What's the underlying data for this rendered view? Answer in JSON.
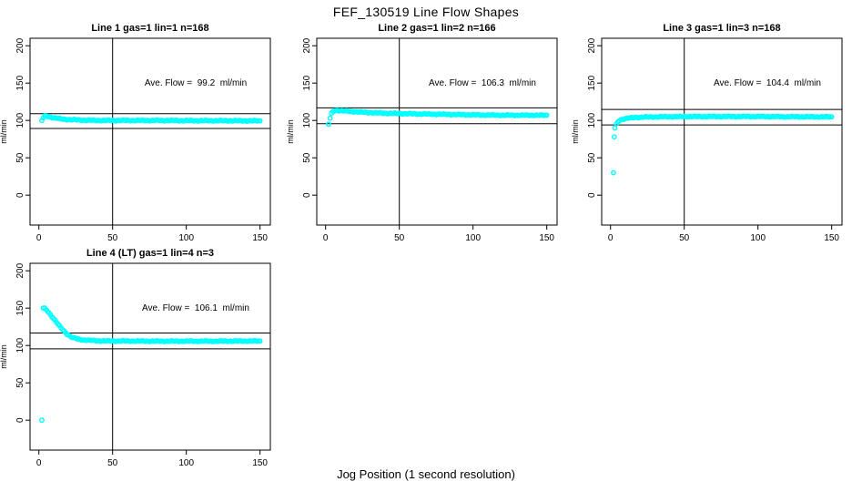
{
  "page": {
    "title": "FEF_130519  Line Flow Shapes",
    "xlabel": "Jog Position (1 second resolution)",
    "background_color": "#ffffff",
    "axis_color": "#000000",
    "point_color": "#00ffff"
  },
  "chart_data": [
    {
      "type": "scatter",
      "title": "Line 1 gas=1 lin=1 n=168",
      "line": 1,
      "gas": 1,
      "lin": 1,
      "n": 168,
      "ave_flow": 99.2,
      "annotation": "Ave. Flow =  99.2  ml/min",
      "ylabel": "ml/min",
      "xlabel": "",
      "xlim": [
        -6,
        157
      ],
      "ylim": [
        -40,
        210
      ],
      "x_ticks": [
        0,
        50,
        100,
        150
      ],
      "y_ticks": [
        0,
        50,
        100,
        150,
        200
      ],
      "vline_x": 50,
      "hlines_y": [
        109.1,
        89.3
      ],
      "point_color": "#00ffff",
      "outliers": [],
      "points": [
        [
          2,
          100
        ],
        [
          3,
          103.5
        ],
        [
          4,
          105.5
        ],
        [
          5,
          106
        ],
        [
          6,
          105.5
        ],
        [
          7,
          105
        ],
        [
          8,
          104.5
        ],
        [
          10,
          103.5
        ],
        [
          12,
          103
        ],
        [
          15,
          102
        ],
        [
          18,
          101.5
        ],
        [
          22,
          101
        ],
        [
          28,
          100.5
        ],
        [
          35,
          100.2
        ],
        [
          45,
          100
        ],
        [
          60,
          100
        ],
        [
          80,
          100
        ],
        [
          100,
          99.8
        ],
        [
          120,
          99.7
        ],
        [
          150,
          99.5
        ]
      ]
    },
    {
      "type": "scatter",
      "title": "Line 2 gas=1 lin=2 n=166",
      "line": 2,
      "gas": 1,
      "lin": 2,
      "n": 166,
      "ave_flow": 106.3,
      "annotation": "Ave. Flow =  106.3  ml/min",
      "ylabel": "ml/min",
      "xlabel": "",
      "xlim": [
        -6,
        157
      ],
      "ylim": [
        -40,
        210
      ],
      "x_ticks": [
        0,
        50,
        100,
        150
      ],
      "y_ticks": [
        0,
        50,
        100,
        150,
        200
      ],
      "vline_x": 50,
      "hlines_y": [
        116.9,
        95.7
      ],
      "point_color": "#00ffff",
      "outliers": [
        [
          2,
          95
        ]
      ],
      "points": [
        [
          2,
          95
        ],
        [
          3,
          103
        ],
        [
          4,
          109
        ],
        [
          5,
          112
        ],
        [
          6,
          113
        ],
        [
          8,
          113.5
        ],
        [
          10,
          113
        ],
        [
          14,
          112.5
        ],
        [
          18,
          112
        ],
        [
          25,
          111
        ],
        [
          35,
          110
        ],
        [
          45,
          109.5
        ],
        [
          55,
          109
        ],
        [
          70,
          108.5
        ],
        [
          85,
          108
        ],
        [
          100,
          107.5
        ],
        [
          120,
          107
        ],
        [
          150,
          107
        ]
      ]
    },
    {
      "type": "scatter",
      "title": "Line 3 gas=1 lin=3 n=168",
      "line": 3,
      "gas": 1,
      "lin": 3,
      "n": 168,
      "ave_flow": 104.4,
      "annotation": "Ave. Flow =  104.4  ml/min",
      "ylabel": "ml/min",
      "xlabel": "",
      "xlim": [
        -6,
        157
      ],
      "ylim": [
        -40,
        210
      ],
      "x_ticks": [
        0,
        50,
        100,
        150
      ],
      "y_ticks": [
        0,
        50,
        100,
        150,
        200
      ],
      "vline_x": 50,
      "hlines_y": [
        114.8,
        94.0
      ],
      "point_color": "#00ffff",
      "outliers": [
        [
          2,
          30
        ],
        [
          2.5,
          78
        ],
        [
          3,
          90
        ]
      ],
      "points": [
        [
          4,
          95
        ],
        [
          5,
          98
        ],
        [
          6,
          100
        ],
        [
          8,
          101.5
        ],
        [
          10,
          102.5
        ],
        [
          13,
          103.3
        ],
        [
          17,
          104
        ],
        [
          22,
          104.4
        ],
        [
          30,
          104.8
        ],
        [
          40,
          105
        ],
        [
          60,
          105.2
        ],
        [
          80,
          105.2
        ],
        [
          100,
          105.2
        ],
        [
          120,
          105
        ],
        [
          150,
          104.8
        ]
      ]
    },
    {
      "type": "scatter",
      "title": "Line 4 (LT) gas=1 lin=4 n=3",
      "line": 4,
      "line_note": "LT",
      "gas": 1,
      "lin": 4,
      "n": 3,
      "ave_flow": 106.1,
      "annotation": "Ave. Flow =  106.1  ml/min",
      "ylabel": "ml/min",
      "xlabel": "",
      "xlim": [
        -6,
        157
      ],
      "ylim": [
        -40,
        210
      ],
      "x_ticks": [
        0,
        50,
        100,
        150
      ],
      "y_ticks": [
        0,
        50,
        100,
        150,
        200
      ],
      "vline_x": 50,
      "hlines_y": [
        116.7,
        95.5
      ],
      "point_color": "#00ffff",
      "outliers": [
        [
          2,
          0
        ]
      ],
      "points": [
        [
          3,
          150
        ],
        [
          4,
          149.5
        ],
        [
          5,
          148
        ],
        [
          6,
          146
        ],
        [
          7,
          143.5
        ],
        [
          8,
          141
        ],
        [
          9,
          138.5
        ],
        [
          10,
          136
        ],
        [
          11,
          133.5
        ],
        [
          12,
          131
        ],
        [
          13,
          128.5
        ],
        [
          14,
          126
        ],
        [
          15,
          123.5
        ],
        [
          16,
          121.5
        ],
        [
          17,
          119.5
        ],
        [
          18,
          117.5
        ],
        [
          19,
          115.5
        ],
        [
          20,
          114
        ],
        [
          22,
          111.5
        ],
        [
          24,
          110
        ],
        [
          26,
          108.8
        ],
        [
          28,
          108
        ],
        [
          30,
          107.5
        ],
        [
          35,
          106.8
        ],
        [
          40,
          106.3
        ],
        [
          50,
          106
        ],
        [
          60,
          106
        ],
        [
          80,
          105.8
        ],
        [
          100,
          105.8
        ],
        [
          120,
          105.8
        ],
        [
          150,
          106
        ]
      ]
    }
  ]
}
